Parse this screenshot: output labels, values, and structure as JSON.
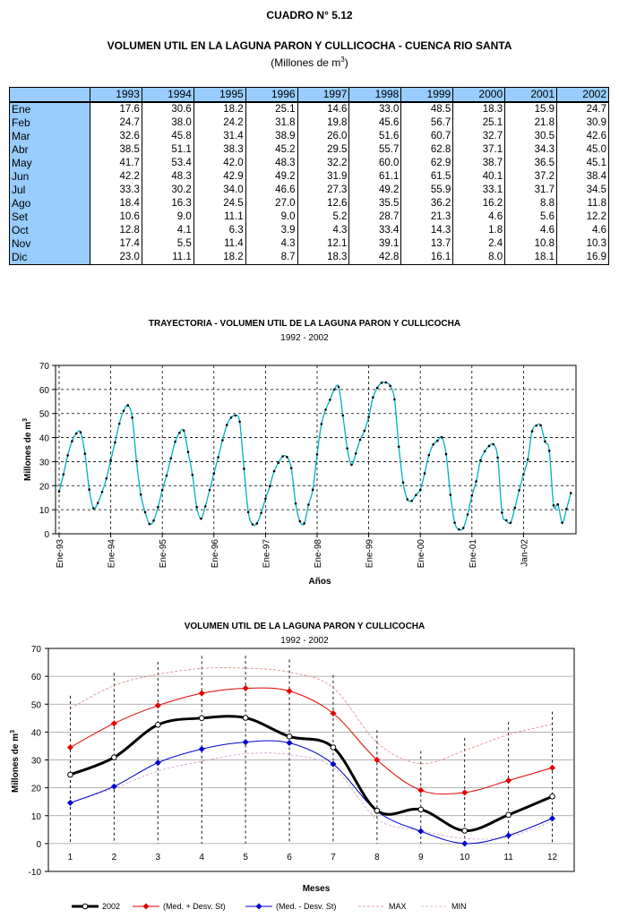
{
  "header": {
    "title": "CUADRO N° 5.12",
    "subtitle": "VOLUMEN UTIL EN LA LAGUNA PARON Y CULLICOCHA - CUENCA RIO SANTA",
    "units_prefix": "(Millones de m",
    "units_sup": "3",
    "units_suffix": ")"
  },
  "table": {
    "years": [
      "1993",
      "1994",
      "1995",
      "1996",
      "1997",
      "1998",
      "1999",
      "2000",
      "2001",
      "2002"
    ],
    "rows": [
      {
        "mes": "Ene",
        "values": [
          "17.6",
          "30.6",
          "18.2",
          "25.1",
          "14.6",
          "33.0",
          "48.5",
          "18.3",
          "15.9",
          "24.7"
        ]
      },
      {
        "mes": "Feb",
        "values": [
          "24.7",
          "38.0",
          "24.2",
          "31.8",
          "19.8",
          "45.6",
          "56.7",
          "25.1",
          "21.8",
          "30.9"
        ]
      },
      {
        "mes": "Mar",
        "values": [
          "32.6",
          "45.8",
          "31.4",
          "38.9",
          "26.0",
          "51.6",
          "60.7",
          "32.7",
          "30.5",
          "42.6"
        ]
      },
      {
        "mes": "Abr",
        "values": [
          "38.5",
          "51.1",
          "38.3",
          "45.2",
          "29.5",
          "55.7",
          "62.8",
          "37.1",
          "34.3",
          "45.0"
        ]
      },
      {
        "mes": "May",
        "values": [
          "41.7",
          "53.4",
          "42.0",
          "48.3",
          "32.2",
          "60.0",
          "62.9",
          "38.7",
          "36.5",
          "45.1"
        ]
      },
      {
        "mes": "Jun",
        "values": [
          "42.2",
          "48.3",
          "42.9",
          "49.2",
          "31.9",
          "61.1",
          "61.5",
          "40.1",
          "37.2",
          "38.4"
        ]
      },
      {
        "mes": "Jul",
        "values": [
          "33.3",
          "30.2",
          "34.0",
          "46.6",
          "27.3",
          "49.2",
          "55.9",
          "33.1",
          "31.7",
          "34.5"
        ]
      },
      {
        "mes": "Ago",
        "values": [
          "18.4",
          "16.3",
          "24.5",
          "27.0",
          "12.6",
          "35.5",
          "36.2",
          "16.2",
          "8.8",
          "11.8"
        ]
      },
      {
        "mes": "Set",
        "values": [
          "10.6",
          "9.0",
          "11.1",
          "9.0",
          "5.2",
          "28.7",
          "21.3",
          "4.6",
          "5.6",
          "12.2"
        ]
      },
      {
        "mes": "Oct",
        "values": [
          "12.8",
          "4.1",
          "6.3",
          "3.9",
          "4.3",
          "33.4",
          "14.3",
          "1.8",
          "4.6",
          "4.6"
        ]
      },
      {
        "mes": "Nov",
        "values": [
          "17.4",
          "5.5",
          "11.4",
          "4.3",
          "12.1",
          "39.1",
          "13.7",
          "2.4",
          "10.8",
          "10.3"
        ]
      },
      {
        "mes": "Dic",
        "values": [
          "23.0",
          "11.1",
          "18.2",
          "8.7",
          "18.3",
          "42.8",
          "16.1",
          "8.0",
          "18.1",
          "16.9"
        ]
      }
    ]
  },
  "chart_data": [
    {
      "type": "line",
      "title": "TRAYECTORIA - VOLUMEN UTIL DE LA LAGUNA PARON Y CULLICOCHA",
      "subtitle": "1992 - 2002",
      "xlabel": "Años",
      "ylabel_prefix": "Millones de m",
      "ylabel_sup": "3",
      "ylim": [
        0,
        70
      ],
      "yticks": [
        0,
        10,
        20,
        30,
        40,
        50,
        60,
        70
      ],
      "xtick_labels": [
        "Ene-93",
        "Ene-94",
        "Ene-95",
        "Ene-96",
        "Ene-97",
        "Ene-98",
        "Ene-99",
        "Ene-00",
        "Ene-01",
        "Jan-02"
      ],
      "grid": true,
      "color": "#00b0c0",
      "series": [
        {
          "values": [
            17.6,
            24.7,
            32.6,
            38.5,
            41.7,
            42.2,
            33.3,
            18.4,
            10.6,
            12.8,
            17.4,
            23.0,
            30.6,
            38.0,
            45.8,
            51.1,
            53.4,
            48.3,
            30.2,
            16.3,
            9.0,
            4.1,
            5.5,
            11.1,
            18.2,
            24.2,
            31.4,
            38.3,
            42.0,
            42.9,
            34.0,
            24.5,
            11.1,
            6.3,
            11.4,
            18.2,
            25.1,
            31.8,
            38.9,
            45.2,
            48.3,
            49.2,
            46.6,
            27.0,
            9.0,
            3.9,
            4.3,
            8.7,
            14.6,
            19.8,
            26.0,
            29.5,
            32.2,
            31.9,
            27.3,
            12.6,
            5.2,
            4.3,
            12.1,
            18.3,
            33.0,
            45.6,
            51.6,
            55.7,
            60.0,
            61.1,
            49.2,
            35.5,
            28.7,
            33.4,
            39.1,
            42.8,
            48.5,
            56.7,
            60.7,
            62.8,
            62.9,
            61.5,
            55.9,
            36.2,
            21.3,
            14.3,
            13.7,
            16.1,
            18.3,
            25.1,
            32.7,
            37.1,
            38.7,
            40.1,
            33.1,
            16.2,
            4.6,
            1.8,
            2.4,
            8.0,
            15.9,
            21.8,
            30.5,
            34.3,
            36.5,
            37.2,
            31.7,
            8.8,
            5.6,
            4.6,
            10.8,
            18.1,
            24.7,
            30.9,
            42.6,
            45.0,
            45.1,
            38.4,
            34.5,
            11.8,
            12.2,
            4.6,
            10.3,
            16.9
          ]
        }
      ]
    },
    {
      "type": "line",
      "title": "VOLUMEN UTIL DE LA LAGUNA PARON Y CULLICOCHA",
      "subtitle": "1992 - 2002",
      "xlabel": "Meses",
      "ylabel_prefix": "Millones de m",
      "ylabel_sup": "3",
      "ylim": [
        -10,
        70
      ],
      "yticks": [
        -10,
        0,
        10,
        20,
        30,
        40,
        50,
        60,
        70
      ],
      "categories": [
        "1",
        "2",
        "3",
        "4",
        "5",
        "6",
        "7",
        "8",
        "9",
        "10",
        "11",
        "12"
      ],
      "grid": true,
      "legend_position": "bottom",
      "series": [
        {
          "name": "2002",
          "color": "#000000",
          "values": [
            24.7,
            30.9,
            42.6,
            45.0,
            45.1,
            38.4,
            34.5,
            11.8,
            12.2,
            4.6,
            10.3,
            16.9
          ]
        },
        {
          "name": "(Med. + Desv. St)",
          "color": "#e00000",
          "values": [
            34.5,
            43.1,
            49.5,
            53.9,
            55.7,
            54.7,
            46.7,
            30.0,
            19.1,
            18.3,
            22.6,
            27.2
          ]
        },
        {
          "name": "(Med. - Desv. St)",
          "color": "#0000cc",
          "values": [
            14.6,
            20.5,
            29.0,
            33.9,
            36.4,
            36.1,
            28.5,
            11.6,
            4.4,
            0.0,
            2.9,
            9.0
          ]
        },
        {
          "name": "MAX",
          "color": "#e08080",
          "values": [
            48.5,
            56.7,
            60.7,
            62.8,
            62.9,
            61.5,
            55.9,
            36.2,
            28.7,
            33.4,
            39.1,
            42.8
          ]
        },
        {
          "name": "MIN",
          "color": "#d0a0d0",
          "values": [
            14.6,
            19.8,
            26.0,
            29.5,
            32.2,
            31.9,
            27.3,
            8.8,
            4.6,
            1.8,
            2.4,
            8.0
          ]
        }
      ]
    }
  ]
}
